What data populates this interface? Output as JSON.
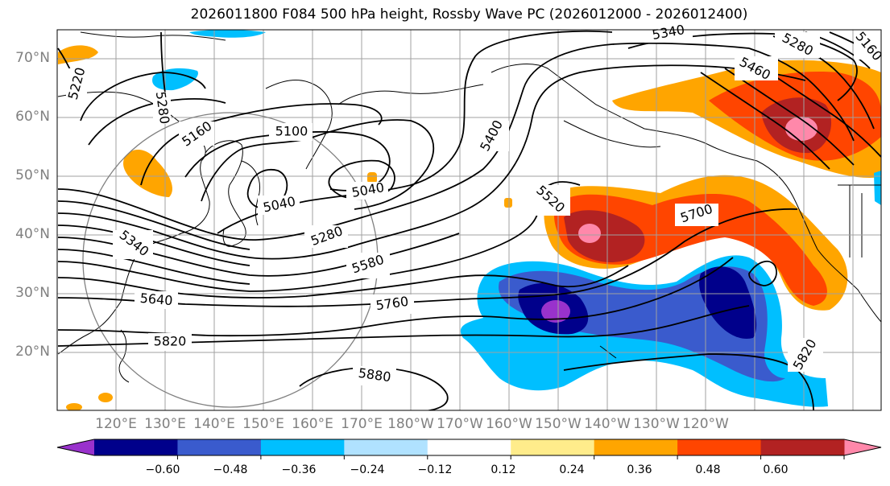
{
  "title": "2026011800 F084 500 hPa height, Rossby Wave PC (2026012000 - 2026012400)",
  "lat_labels": [
    "70°N",
    "60°N",
    "50°N",
    "40°N",
    "30°N",
    "20°N"
  ],
  "lon_labels": [
    "120°E",
    "130°E",
    "140°E",
    "150°E",
    "160°E",
    "170°E",
    "180°W",
    "170°W",
    "160°W",
    "150°W",
    "140°W",
    "130°W",
    "120°W"
  ],
  "contour_labels": [
    "5220",
    "5280",
    "5160",
    "5100",
    "5040",
    "5040",
    "5400",
    "5520",
    "5340",
    "5280",
    "5460",
    "5280",
    "5160",
    "5580",
    "5700",
    "5340",
    "5640",
    "5760",
    "5820",
    "5880",
    "5820"
  ],
  "colorbar": {
    "ticks": [
      "−0.60",
      "−0.48",
      "−0.36",
      "−0.24",
      "−0.12",
      "0.12",
      "0.24",
      "0.36",
      "0.48",
      "0.60"
    ],
    "colors": [
      "#9932cc",
      "#00008b",
      "#3a5bcd",
      "#00bfff",
      "#b0e2ff",
      "#ffffff",
      "#ffec8b",
      "#ffa500",
      "#ff4500",
      "#b22222",
      "#ff88aa"
    ]
  }
}
